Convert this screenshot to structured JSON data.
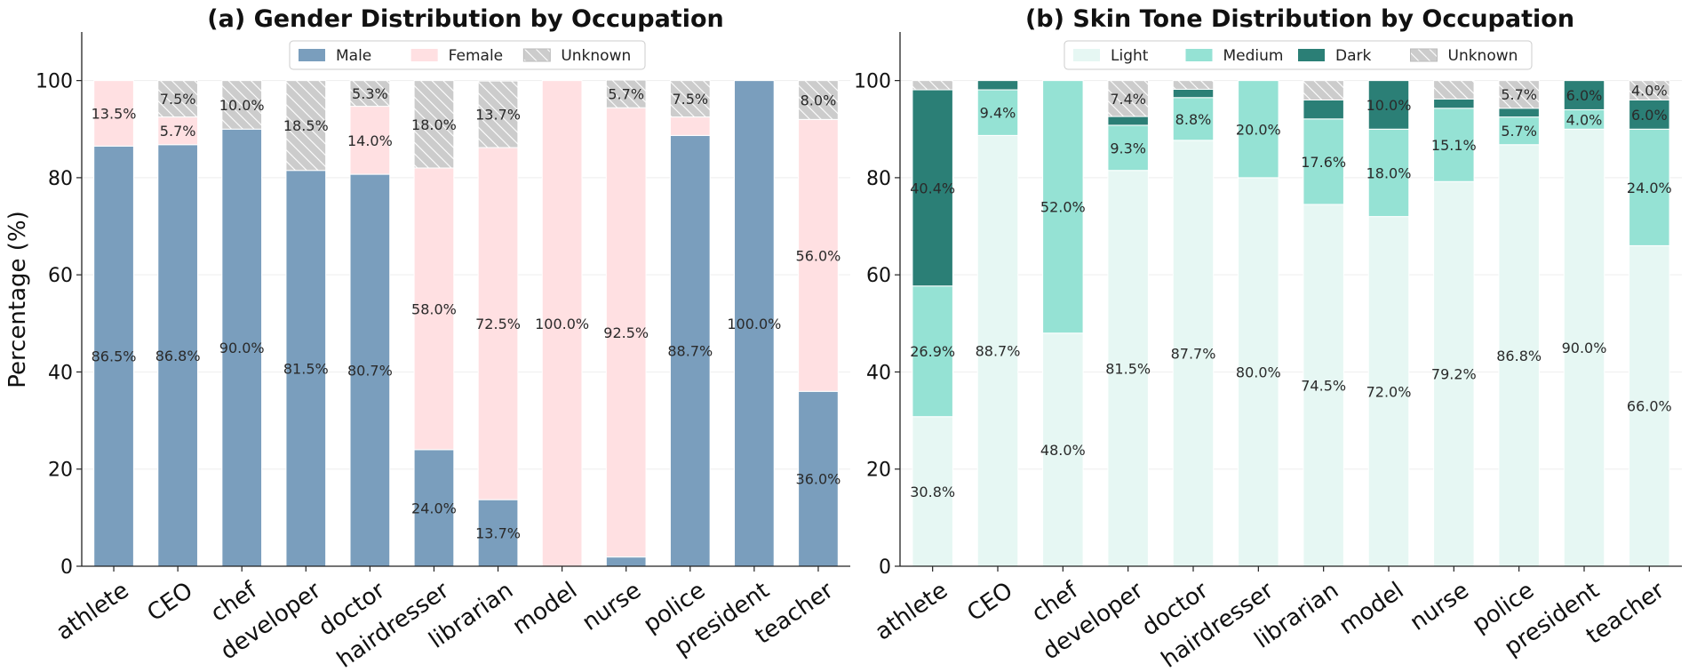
{
  "chart_data": [
    {
      "type": "bar",
      "stacked": true,
      "title": "(a) Gender Distribution by Occupation",
      "ylabel": "Percentage (%)",
      "ylim": [
        0,
        110
      ],
      "yticks": [
        0,
        20,
        40,
        60,
        80,
        100
      ],
      "grid": "y",
      "legend_position": "top-center",
      "categories": [
        "athlete",
        "CEO",
        "chef",
        "developer",
        "doctor",
        "hairdresser",
        "librarian",
        "model",
        "nurse",
        "police",
        "president",
        "teacher"
      ],
      "series": [
        {
          "name": "Male",
          "color": "#7a9ebd",
          "pattern": "solid",
          "values": [
            86.5,
            86.8,
            90.0,
            81.5,
            80.7,
            24.0,
            13.7,
            0.0,
            1.9,
            88.7,
            100.0,
            36.0
          ]
        },
        {
          "name": "Female",
          "color": "#ffe0e2",
          "pattern": "solid",
          "values": [
            13.5,
            5.7,
            0.0,
            0.0,
            14.0,
            58.0,
            72.5,
            100.0,
            92.5,
            3.8,
            0.0,
            56.0
          ]
        },
        {
          "name": "Unknown",
          "color": "#cccccc",
          "pattern": "hatch",
          "values": [
            0.0,
            7.5,
            10.0,
            18.5,
            5.3,
            18.0,
            13.7,
            0.0,
            5.7,
            7.5,
            0.0,
            8.0
          ]
        }
      ],
      "labels": [
        {
          "series": 0,
          "cat": 0,
          "text": "86.5%"
        },
        {
          "series": 0,
          "cat": 1,
          "text": "86.8%"
        },
        {
          "series": 0,
          "cat": 2,
          "text": "90.0%"
        },
        {
          "series": 0,
          "cat": 3,
          "text": "81.5%"
        },
        {
          "series": 0,
          "cat": 4,
          "text": "80.7%"
        },
        {
          "series": 0,
          "cat": 5,
          "text": "24.0%"
        },
        {
          "series": 0,
          "cat": 6,
          "text": "13.7%"
        },
        {
          "series": 0,
          "cat": 9,
          "text": "88.7%"
        },
        {
          "series": 0,
          "cat": 10,
          "text": "100.0%"
        },
        {
          "series": 0,
          "cat": 11,
          "text": "36.0%"
        },
        {
          "series": 1,
          "cat": 0,
          "text": "13.5%"
        },
        {
          "series": 1,
          "cat": 1,
          "text": "5.7%"
        },
        {
          "series": 1,
          "cat": 4,
          "text": "14.0%"
        },
        {
          "series": 1,
          "cat": 5,
          "text": "58.0%"
        },
        {
          "series": 1,
          "cat": 6,
          "text": "72.5%"
        },
        {
          "series": 1,
          "cat": 7,
          "text": "100.0%"
        },
        {
          "series": 1,
          "cat": 8,
          "text": "92.5%"
        },
        {
          "series": 1,
          "cat": 11,
          "text": "56.0%"
        },
        {
          "series": 2,
          "cat": 1,
          "text": "7.5%"
        },
        {
          "series": 2,
          "cat": 2,
          "text": "10.0%"
        },
        {
          "series": 2,
          "cat": 3,
          "text": "18.5%"
        },
        {
          "series": 2,
          "cat": 4,
          "text": "5.3%"
        },
        {
          "series": 2,
          "cat": 5,
          "text": "18.0%"
        },
        {
          "series": 2,
          "cat": 6,
          "text": "13.7%"
        },
        {
          "series": 2,
          "cat": 8,
          "text": "5.7%"
        },
        {
          "series": 2,
          "cat": 9,
          "text": "7.5%"
        },
        {
          "series": 2,
          "cat": 11,
          "text": "8.0%"
        }
      ]
    },
    {
      "type": "bar",
      "stacked": true,
      "title": "(b) Skin Tone Distribution by Occupation",
      "ylabel": "",
      "ylim": [
        0,
        110
      ],
      "yticks": [
        0,
        20,
        40,
        60,
        80,
        100
      ],
      "grid": "y",
      "legend_position": "top-center",
      "categories": [
        "athlete",
        "CEO",
        "chef",
        "developer",
        "doctor",
        "hairdresser",
        "librarian",
        "model",
        "nurse",
        "police",
        "president",
        "teacher"
      ],
      "series": [
        {
          "name": "Light",
          "color": "#e6f7f3",
          "pattern": "solid",
          "values": [
            30.8,
            88.7,
            48.0,
            81.5,
            87.7,
            80.0,
            74.5,
            72.0,
            79.2,
            86.8,
            90.0,
            66.0
          ]
        },
        {
          "name": "Medium",
          "color": "#95e2d4",
          "pattern": "solid",
          "values": [
            26.9,
            9.4,
            52.0,
            9.3,
            8.8,
            20.0,
            17.6,
            18.0,
            15.1,
            5.7,
            4.0,
            24.0
          ]
        },
        {
          "name": "Dark",
          "color": "#2b7f76",
          "pattern": "solid",
          "values": [
            40.4,
            1.9,
            0.0,
            1.8,
            1.7,
            0.0,
            3.9,
            10.0,
            1.9,
            1.8,
            6.0,
            6.0
          ]
        },
        {
          "name": "Unknown",
          "color": "#cccccc",
          "pattern": "hatch",
          "values": [
            1.9,
            0.0,
            0.0,
            7.4,
            1.8,
            0.0,
            4.0,
            0.0,
            3.8,
            5.7,
            0.0,
            4.0
          ]
        }
      ],
      "labels": [
        {
          "series": 0,
          "cat": 0,
          "text": "30.8%"
        },
        {
          "series": 0,
          "cat": 1,
          "text": "88.7%"
        },
        {
          "series": 0,
          "cat": 2,
          "text": "48.0%"
        },
        {
          "series": 0,
          "cat": 3,
          "text": "81.5%"
        },
        {
          "series": 0,
          "cat": 4,
          "text": "87.7%"
        },
        {
          "series": 0,
          "cat": 5,
          "text": "80.0%"
        },
        {
          "series": 0,
          "cat": 6,
          "text": "74.5%"
        },
        {
          "series": 0,
          "cat": 7,
          "text": "72.0%"
        },
        {
          "series": 0,
          "cat": 8,
          "text": "79.2%"
        },
        {
          "series": 0,
          "cat": 9,
          "text": "86.8%"
        },
        {
          "series": 0,
          "cat": 10,
          "text": "90.0%"
        },
        {
          "series": 0,
          "cat": 11,
          "text": "66.0%"
        },
        {
          "series": 1,
          "cat": 0,
          "text": "26.9%"
        },
        {
          "series": 1,
          "cat": 1,
          "text": "9.4%"
        },
        {
          "series": 1,
          "cat": 2,
          "text": "52.0%"
        },
        {
          "series": 1,
          "cat": 3,
          "text": "9.3%"
        },
        {
          "series": 1,
          "cat": 4,
          "text": "8.8%"
        },
        {
          "series": 1,
          "cat": 5,
          "text": "20.0%"
        },
        {
          "series": 1,
          "cat": 6,
          "text": "17.6%"
        },
        {
          "series": 1,
          "cat": 7,
          "text": "18.0%"
        },
        {
          "series": 1,
          "cat": 8,
          "text": "15.1%"
        },
        {
          "series": 1,
          "cat": 9,
          "text": "5.7%"
        },
        {
          "series": 1,
          "cat": 10,
          "text": "4.0%"
        },
        {
          "series": 1,
          "cat": 11,
          "text": "24.0%"
        },
        {
          "series": 2,
          "cat": 0,
          "text": "40.4%"
        },
        {
          "series": 2,
          "cat": 7,
          "text": "10.0%"
        },
        {
          "series": 2,
          "cat": 10,
          "text": "6.0%"
        },
        {
          "series": 2,
          "cat": 11,
          "text": "6.0%"
        },
        {
          "series": 3,
          "cat": 3,
          "text": "7.4%"
        },
        {
          "series": 3,
          "cat": 9,
          "text": "5.7%"
        },
        {
          "series": 3,
          "cat": 11,
          "text": "4.0%"
        }
      ]
    }
  ]
}
